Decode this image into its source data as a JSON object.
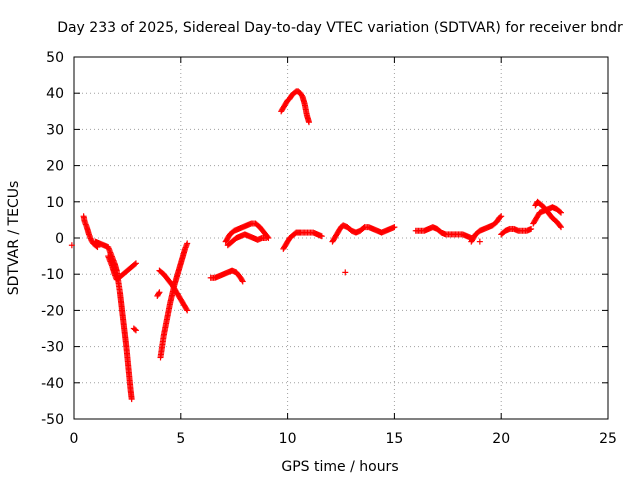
{
  "chart_data": {
    "type": "scatter",
    "title": "Day 233 of 2025, Sidereal Day-to-day VTEC variation (SDTVAR) for receiver bndr",
    "xlabel": "GPS time / hours",
    "ylabel": "SDTVAR / TECUs",
    "xlim": [
      0,
      25
    ],
    "ylim": [
      -50,
      50
    ],
    "x_ticks": [
      0,
      5,
      10,
      15,
      20,
      25
    ],
    "y_ticks": [
      -50,
      -40,
      -30,
      -20,
      -10,
      0,
      10,
      20,
      30,
      40,
      50
    ],
    "x_tick_labels": [
      "0",
      "5",
      "10",
      "15",
      "20",
      "25"
    ],
    "y_tick_labels": [
      "-50",
      "-40",
      "-30",
      "-20",
      "-10",
      "0",
      "10",
      "20",
      "30",
      "40",
      "50"
    ],
    "grid": true,
    "marker": "+",
    "color": "#ff0000",
    "series": [
      {
        "segments": [
          [
            [
              -0.1,
              -2
            ]
          ],
          [
            [
              0.45,
              6
            ],
            [
              0.5,
              4.5
            ],
            [
              0.6,
              3
            ],
            [
              0.7,
              1
            ],
            [
              0.8,
              -0.5
            ],
            [
              0.9,
              -1.5
            ],
            [
              1.0,
              -2
            ],
            [
              1.1,
              -2.5
            ]
          ],
          [
            [
              1.0,
              -1
            ],
            [
              1.2,
              -1.5
            ],
            [
              1.4,
              -2
            ],
            [
              1.6,
              -2.5
            ],
            [
              1.7,
              -4
            ],
            [
              1.8,
              -5.5
            ],
            [
              1.9,
              -7
            ],
            [
              2.0,
              -9
            ],
            [
              2.05,
              -11
            ],
            [
              2.1,
              -13
            ],
            [
              2.15,
              -15
            ],
            [
              2.2,
              -17.5
            ],
            [
              2.25,
              -20
            ],
            [
              2.3,
              -22.5
            ],
            [
              2.35,
              -25
            ],
            [
              2.4,
              -27.5
            ],
            [
              2.45,
              -30
            ],
            [
              2.5,
              -33
            ],
            [
              2.55,
              -36
            ],
            [
              2.6,
              -39
            ],
            [
              2.65,
              -42
            ],
            [
              2.7,
              -44.5
            ]
          ],
          [
            [
              1.6,
              -5
            ],
            [
              1.8,
              -8
            ],
            [
              1.9,
              -10
            ],
            [
              2.0,
              -11.5
            ],
            [
              2.1,
              -11
            ],
            [
              2.2,
              -10.5
            ],
            [
              2.4,
              -9.5
            ],
            [
              2.6,
              -8.5
            ],
            [
              2.8,
              -7.5
            ],
            [
              2.9,
              -7
            ]
          ],
          [
            [
              2.8,
              -25
            ],
            [
              2.9,
              -25.5
            ]
          ],
          [
            [
              3.9,
              -16
            ],
            [
              4.0,
              -15
            ]
          ],
          [
            [
              4.05,
              -33
            ],
            [
              4.1,
              -31
            ],
            [
              4.15,
              -29
            ],
            [
              4.2,
              -27
            ],
            [
              4.3,
              -24
            ],
            [
              4.4,
              -21
            ],
            [
              4.5,
              -18
            ],
            [
              4.6,
              -15.5
            ],
            [
              4.7,
              -13
            ],
            [
              4.8,
              -11
            ],
            [
              4.9,
              -9
            ],
            [
              5.0,
              -7
            ],
            [
              5.1,
              -5
            ],
            [
              5.2,
              -3
            ],
            [
              5.3,
              -1.5
            ]
          ],
          [
            [
              4.0,
              -9
            ],
            [
              4.2,
              -10
            ],
            [
              4.4,
              -11.5
            ],
            [
              4.6,
              -13
            ],
            [
              4.8,
              -15
            ],
            [
              5.0,
              -17
            ],
            [
              5.2,
              -19
            ],
            [
              5.3,
              -20
            ]
          ],
          [
            [
              6.4,
              -11
            ],
            [
              6.6,
              -11
            ],
            [
              6.8,
              -10.5
            ],
            [
              7.0,
              -10
            ],
            [
              7.2,
              -9.5
            ],
            [
              7.4,
              -9
            ],
            [
              7.6,
              -9.5
            ],
            [
              7.8,
              -11
            ],
            [
              7.9,
              -12
            ]
          ],
          [
            [
              7.1,
              -1
            ],
            [
              7.2,
              0
            ],
            [
              7.3,
              1
            ],
            [
              7.5,
              2
            ],
            [
              7.7,
              2.5
            ],
            [
              7.9,
              3
            ],
            [
              8.1,
              3.5
            ],
            [
              8.3,
              4
            ],
            [
              8.5,
              4
            ],
            [
              8.7,
              3
            ],
            [
              8.9,
              1.5
            ],
            [
              9.1,
              0
            ]
          ],
          [
            [
              7.2,
              -2
            ],
            [
              7.4,
              -1
            ],
            [
              7.6,
              0
            ],
            [
              7.8,
              0.5
            ],
            [
              8.0,
              1
            ],
            [
              8.2,
              0.5
            ],
            [
              8.4,
              0
            ],
            [
              8.6,
              -0.5
            ],
            [
              8.8,
              0
            ],
            [
              9.0,
              0
            ]
          ],
          [
            [
              9.7,
              35
            ],
            [
              9.8,
              36
            ],
            [
              9.9,
              37
            ],
            [
              10.0,
              38
            ],
            [
              10.1,
              38.5
            ],
            [
              10.2,
              39.5
            ],
            [
              10.3,
              40
            ],
            [
              10.4,
              40.5
            ],
            [
              10.5,
              40.5
            ],
            [
              10.6,
              40
            ],
            [
              10.7,
              39
            ],
            [
              10.8,
              37
            ],
            [
              10.9,
              34
            ],
            [
              11.0,
              32
            ]
          ],
          [
            [
              9.8,
              -3
            ],
            [
              9.9,
              -2
            ],
            [
              10.0,
              -1
            ],
            [
              10.1,
              0
            ],
            [
              10.2,
              0.5
            ],
            [
              10.3,
              1
            ],
            [
              10.4,
              1.5
            ],
            [
              10.5,
              1.5
            ],
            [
              10.6,
              1.5
            ],
            [
              10.8,
              1.5
            ],
            [
              11.0,
              1.5
            ],
            [
              11.2,
              1.5
            ],
            [
              11.4,
              1
            ],
            [
              11.6,
              0.5
            ]
          ],
          [
            [
              12.1,
              -1
            ],
            [
              12.2,
              0
            ],
            [
              12.3,
              1
            ],
            [
              12.4,
              2
            ],
            [
              12.5,
              3
            ],
            [
              12.6,
              3.5
            ],
            [
              12.8,
              3
            ],
            [
              13.0,
              2
            ],
            [
              13.2,
              1.5
            ],
            [
              13.4,
              2
            ],
            [
              13.6,
              3
            ],
            [
              13.8,
              3
            ],
            [
              14.0,
              2.5
            ],
            [
              14.2,
              2
            ],
            [
              14.4,
              1.5
            ],
            [
              14.6,
              2
            ],
            [
              14.8,
              2.5
            ],
            [
              15.0,
              3
            ]
          ],
          [
            [
              12.7,
              -9.5
            ]
          ],
          [
            [
              16.0,
              2
            ],
            [
              16.2,
              2
            ],
            [
              16.4,
              2
            ],
            [
              16.6,
              2.5
            ],
            [
              16.8,
              3
            ],
            [
              17.0,
              2.5
            ],
            [
              17.2,
              1.5
            ],
            [
              17.4,
              1
            ],
            [
              17.6,
              1
            ],
            [
              17.8,
              1
            ],
            [
              18.0,
              1
            ],
            [
              18.2,
              1
            ],
            [
              18.4,
              0.5
            ],
            [
              18.6,
              0
            ]
          ],
          [
            [
              18.6,
              -1
            ],
            [
              18.7,
              0
            ],
            [
              18.8,
              1
            ],
            [
              19.0,
              2
            ],
            [
              19.2,
              2.5
            ],
            [
              19.4,
              3
            ],
            [
              19.6,
              3.5
            ],
            [
              19.8,
              4.5
            ],
            [
              19.9,
              5.5
            ],
            [
              20.0,
              6
            ]
          ],
          [
            [
              19.0,
              -1
            ]
          ],
          [
            [
              20.0,
              1
            ],
            [
              20.2,
              2
            ],
            [
              20.4,
              2.5
            ],
            [
              20.6,
              2.5
            ],
            [
              20.8,
              2
            ],
            [
              21.0,
              2
            ],
            [
              21.2,
              2
            ],
            [
              21.4,
              2.5
            ]
          ],
          [
            [
              21.5,
              4
            ],
            [
              21.6,
              5
            ],
            [
              21.7,
              6
            ],
            [
              21.8,
              7
            ],
            [
              22.0,
              7.5
            ],
            [
              22.2,
              8
            ],
            [
              22.4,
              8.5
            ],
            [
              22.6,
              8
            ],
            [
              22.8,
              7
            ]
          ],
          [
            [
              21.6,
              9
            ],
            [
              21.7,
              10
            ],
            [
              21.8,
              9.5
            ],
            [
              22.0,
              8.5
            ],
            [
              22.2,
              7
            ],
            [
              22.4,
              5.5
            ],
            [
              22.6,
              4.5
            ],
            [
              22.8,
              3
            ]
          ]
        ]
      }
    ]
  }
}
